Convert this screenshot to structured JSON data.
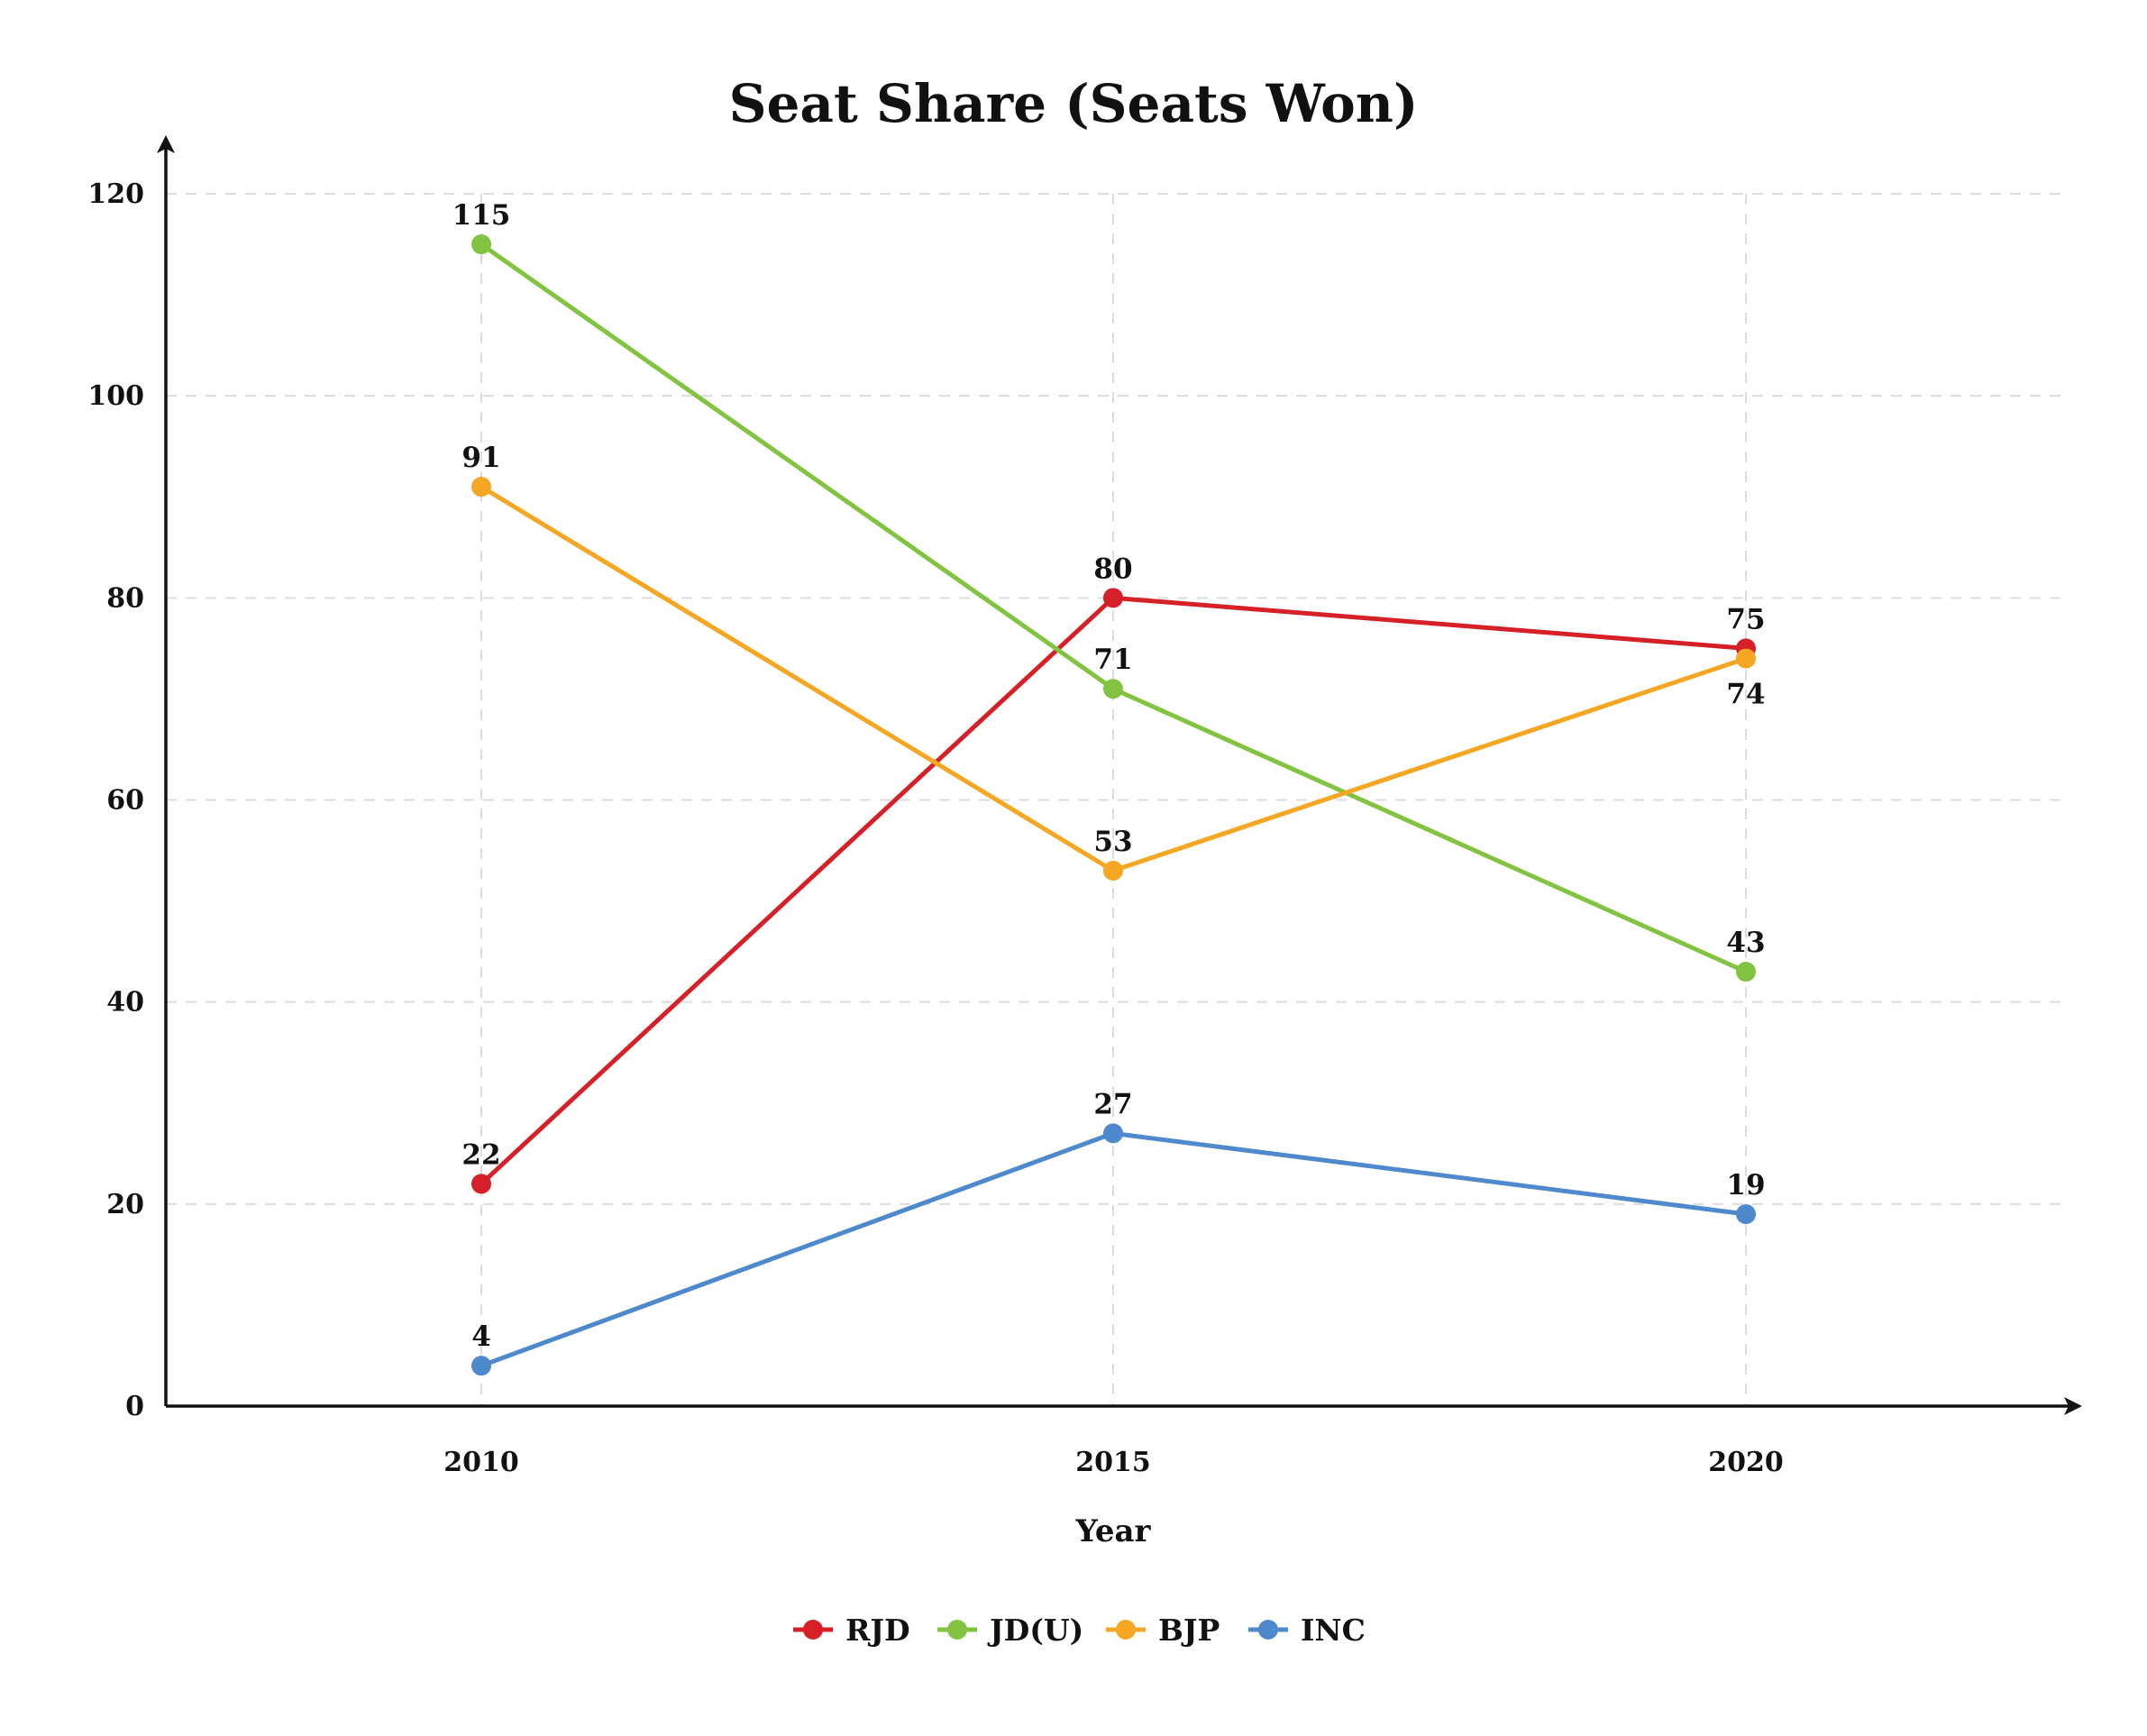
{
  "chart_data": {
    "type": "line",
    "title": "Seat Share (Seats Won)",
    "xlabel": "Year",
    "ylabel": "",
    "x": [
      "2010",
      "2015",
      "2020"
    ],
    "ylim": [
      0,
      120
    ],
    "yticks": [
      0,
      20,
      40,
      60,
      80,
      100,
      120
    ],
    "grid": true,
    "legend_position": "bottom-center",
    "series": [
      {
        "name": "RJD",
        "color": "#d62027",
        "values": [
          22,
          80,
          75
        ]
      },
      {
        "name": "JD(U)",
        "color": "#82c341",
        "values": [
          115,
          71,
          43
        ]
      },
      {
        "name": "BJP",
        "color": "#f5a623",
        "values": [
          91,
          53,
          74
        ]
      },
      {
        "name": "INC",
        "color": "#4f89cd",
        "values": [
          4,
          27,
          19
        ]
      }
    ]
  }
}
